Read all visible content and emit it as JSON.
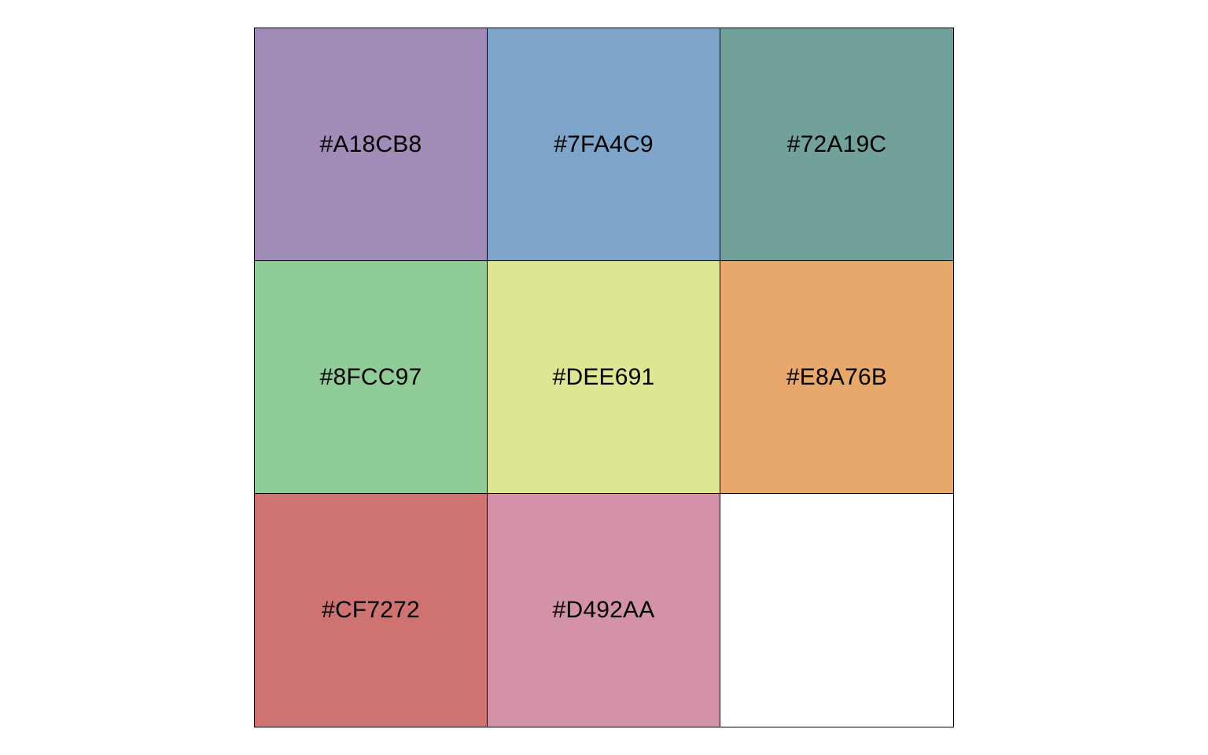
{
  "palette": {
    "swatches": [
      {
        "label": "#A18CB8",
        "color": "#A18CB8"
      },
      {
        "label": "#7FA4C9",
        "color": "#7FA4C9"
      },
      {
        "label": "#72A19C",
        "color": "#72A19C"
      },
      {
        "label": "#8FCC97",
        "color": "#8FCC97"
      },
      {
        "label": "#DEE691",
        "color": "#DEE691"
      },
      {
        "label": "#E8A76B",
        "color": "#E8A76B"
      },
      {
        "label": "#CF7272",
        "color": "#CF7272"
      },
      {
        "label": "#D492AA",
        "color": "#D492AA"
      }
    ],
    "columns": 3,
    "rows": 3
  }
}
